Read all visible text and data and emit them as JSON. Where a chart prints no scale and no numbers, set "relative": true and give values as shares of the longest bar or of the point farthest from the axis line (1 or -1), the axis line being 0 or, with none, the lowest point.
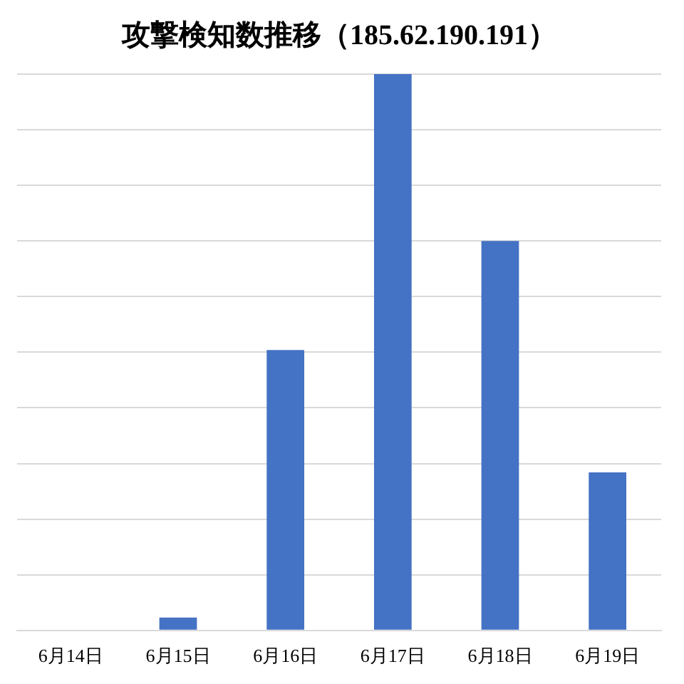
{
  "chart_data": {
    "type": "bar",
    "title": "攻撃検知数推移（185.62.190.191）",
    "categories": [
      "6月14日",
      "6月15日",
      "6月16日",
      "6月17日",
      "6月18日",
      "6月19日"
    ],
    "values": [
      0,
      0.023,
      0.504,
      1,
      0.7,
      0.284
    ],
    "color": "#4472c4",
    "relative": true,
    "grid": "y"
  }
}
